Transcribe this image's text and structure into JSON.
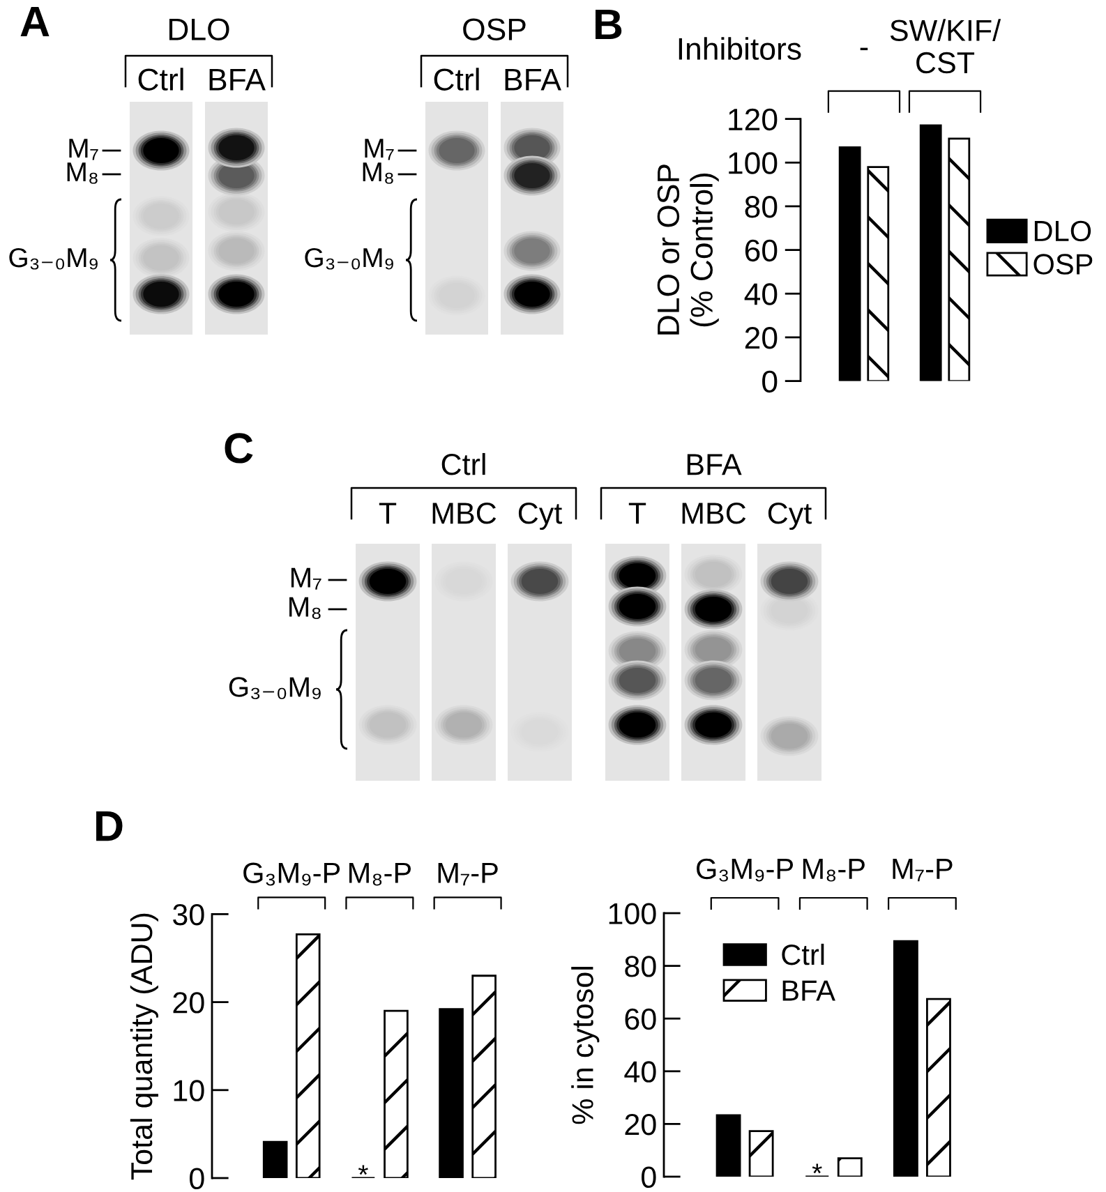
{
  "chart_data": [
    {
      "type": "other",
      "title": "A",
      "categories": [
        "Ctrl",
        "BFA",
        "Ctrl",
        "BFA"
      ],
      "annotations": [
        "DLO",
        "OSP"
      ],
      "y_categories": [
        "M₇",
        "M₈",
        "G₃₋₀M₉"
      ],
      "y2_categories": [
        "M₇",
        "M₈",
        "G₃₋₀M₉"
      ]
    },
    {
      "type": "bar",
      "title": "B",
      "xlabel": "Inhibitors",
      "ylabel": "DLO or OSP\n(% Control)",
      "categories": [
        "-",
        "SW/KIF/\nCST"
      ],
      "series": [
        {
          "name": "DLO",
          "color": "#000000",
          "values": [
            107,
            117
          ]
        },
        {
          "name": "OSP",
          "color": "#ffffff",
          "values": [
            98,
            111
          ]
        }
      ],
      "ylim": [
        0,
        120
      ],
      "yticks": [
        0,
        20,
        40,
        60,
        80,
        100,
        120
      ],
      "legend": "right"
    },
    {
      "type": "other",
      "title": "C",
      "categories": [
        "T",
        "MBC",
        "Cyt",
        "T",
        "MBC",
        "Cyt"
      ],
      "annotations": [
        "Ctrl",
        "BFA"
      ],
      "y_categories": [
        "M₇",
        "M₈",
        "G₃₋₀M₉"
      ]
    },
    {
      "type": "bar",
      "title": "D",
      "ylabel": "Total quantity (ADU)",
      "categories": [
        "G₃M₉-P",
        "M₈-P",
        "M₇-P"
      ],
      "series": [
        {
          "color": "#000000",
          "values": [
            4.1,
            0,
            19.2
          ]
        },
        {
          "color": "#ffffff",
          "values": [
            27.7,
            19.0,
            23.0
          ]
        }
      ],
      "ylim": [
        0,
        30
      ],
      "yticks": [
        0,
        10,
        20,
        30
      ],
      "annotations": [
        {
          "text": "*",
          "x": "M₈-P",
          "y": 0
        }
      ]
    },
    {
      "type": "bar",
      "ylabel": "% in cytosol",
      "categories": [
        "G₃M₉-P",
        "M₈-P",
        "M₇-P"
      ],
      "series": [
        {
          "name": "Ctrl",
          "color": "#000000",
          "values": [
            23.3,
            0,
            89.4
          ]
        },
        {
          "name": "BFA",
          "color": "#ffffff",
          "values": [
            17.3,
            7.0,
            67.4
          ]
        }
      ],
      "ylim": [
        0,
        100
      ],
      "yticks": [
        0,
        20,
        40,
        60,
        80,
        100
      ],
      "legend": "top left",
      "annotations": [
        {
          "text": "*",
          "x": "M₈-P",
          "y": 0
        }
      ]
    }
  ]
}
